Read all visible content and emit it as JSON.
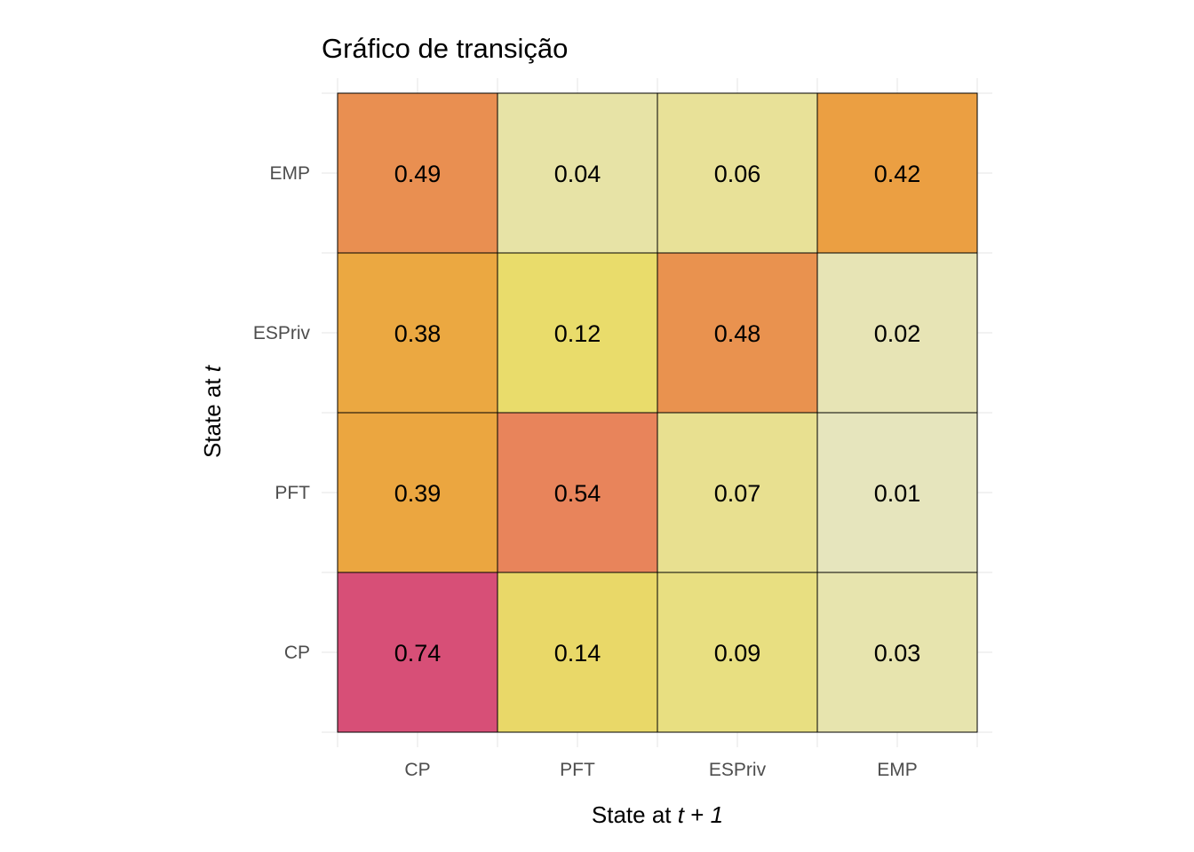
{
  "chart_data": {
    "type": "heatmap",
    "title": "Gráfico de transição",
    "xlabel": {
      "plain": "State at ",
      "var": "t",
      "op": " + ",
      "num": "1"
    },
    "ylabel": {
      "plain": "State at ",
      "var": "t"
    },
    "x_categories": [
      "CP",
      "PFT",
      "ESPriv",
      "EMP"
    ],
    "y_categories": [
      "CP",
      "PFT",
      "ESPriv",
      "EMP"
    ],
    "matrix_rows": [
      {
        "from": "CP",
        "values": [
          0.74,
          0.14,
          0.09,
          0.03
        ],
        "labels": [
          "0.74",
          "0.14",
          "0.09",
          "0.03"
        ]
      },
      {
        "from": "PFT",
        "values": [
          0.39,
          0.54,
          0.07,
          0.01
        ],
        "labels": [
          "0.39",
          "0.54",
          "0.07",
          "0.01"
        ]
      },
      {
        "from": "ESPriv",
        "values": [
          0.38,
          0.12,
          0.48,
          0.02
        ],
        "labels": [
          "0.38",
          "0.12",
          "0.48",
          "0.02"
        ]
      },
      {
        "from": "EMP",
        "values": [
          0.49,
          0.04,
          0.06,
          0.42
        ],
        "labels": [
          "0.49",
          "0.04",
          "0.06",
          "0.42"
        ]
      }
    ],
    "color_scale": {
      "low": "#e6e6c4",
      "mid1": "#e9dc6b",
      "mid2": "#eba43e",
      "mid3": "#e8845b",
      "high": "#d74f77"
    },
    "gridlines": true,
    "legend": "none"
  }
}
